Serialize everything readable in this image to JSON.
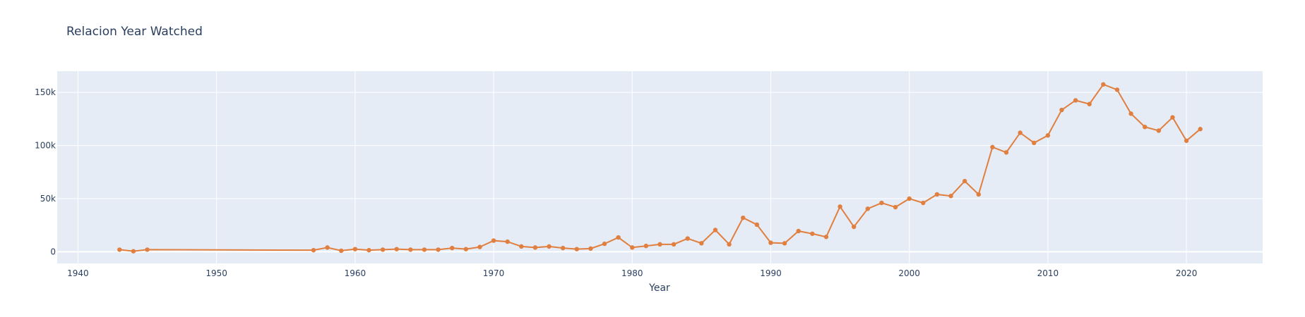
{
  "chart_data": {
    "type": "line",
    "title": "Relacion Year Watched",
    "xlabel": "Year",
    "ylabel": "",
    "xlim": [
      1938.5,
      2025.5
    ],
    "ylim": [
      -11000,
      170000
    ],
    "grid": true,
    "legend": "none",
    "plot_bg": "#e5ecf6",
    "line_color": "#e07f3f",
    "x_ticks": [
      {
        "value": 1940,
        "label": "1940"
      },
      {
        "value": 1950,
        "label": "1950"
      },
      {
        "value": 1960,
        "label": "1960"
      },
      {
        "value": 1970,
        "label": "1970"
      },
      {
        "value": 1980,
        "label": "1980"
      },
      {
        "value": 1990,
        "label": "1990"
      },
      {
        "value": 2000,
        "label": "2000"
      },
      {
        "value": 2010,
        "label": "2010"
      },
      {
        "value": 2020,
        "label": "2020"
      }
    ],
    "y_ticks": [
      {
        "value": 0,
        "label": "0"
      },
      {
        "value": 50000,
        "label": "50k"
      },
      {
        "value": 100000,
        "label": "100k"
      },
      {
        "value": 150000,
        "label": "150k"
      }
    ],
    "series": [
      {
        "x": [
          1943,
          1944,
          1945,
          1957,
          1958,
          1959,
          1960,
          1961,
          1962,
          1963,
          1964,
          1965,
          1966,
          1967,
          1968,
          1969,
          1970,
          1971,
          1972,
          1973,
          1974,
          1975,
          1976,
          1977,
          1978,
          1979,
          1980,
          1981,
          1982,
          1983,
          1984,
          1985,
          1986,
          1987,
          1988,
          1989,
          1990,
          1991,
          1992,
          1993,
          1994,
          1995,
          1996,
          1997,
          1998,
          1999,
          2000,
          2001,
          2002,
          2003,
          2004,
          2005,
          2006,
          2007,
          2008,
          2009,
          2010,
          2011,
          2012,
          2013,
          2014,
          2015,
          2016,
          2017,
          2018,
          2019,
          2020,
          2021
        ],
        "y": [
          2000,
          500,
          2000,
          1500,
          4000,
          1000,
          2500,
          1500,
          2000,
          2500,
          2000,
          2000,
          2000,
          3500,
          2500,
          4500,
          10500,
          9500,
          5000,
          4000,
          5000,
          3500,
          2500,
          3000,
          7500,
          13500,
          4000,
          5500,
          7000,
          7000,
          12500,
          8000,
          20500,
          7000,
          32000,
          25500,
          8500,
          8000,
          19500,
          17000,
          14000,
          42500,
          23500,
          40500,
          46000,
          42000,
          50000,
          46000,
          54000,
          52500,
          66500,
          54000,
          98500,
          93500,
          112000,
          102500,
          109500,
          133500,
          142500,
          139000,
          157500,
          152500,
          130000,
          117500,
          114000,
          126500,
          104500,
          115500
        ]
      }
    ]
  }
}
